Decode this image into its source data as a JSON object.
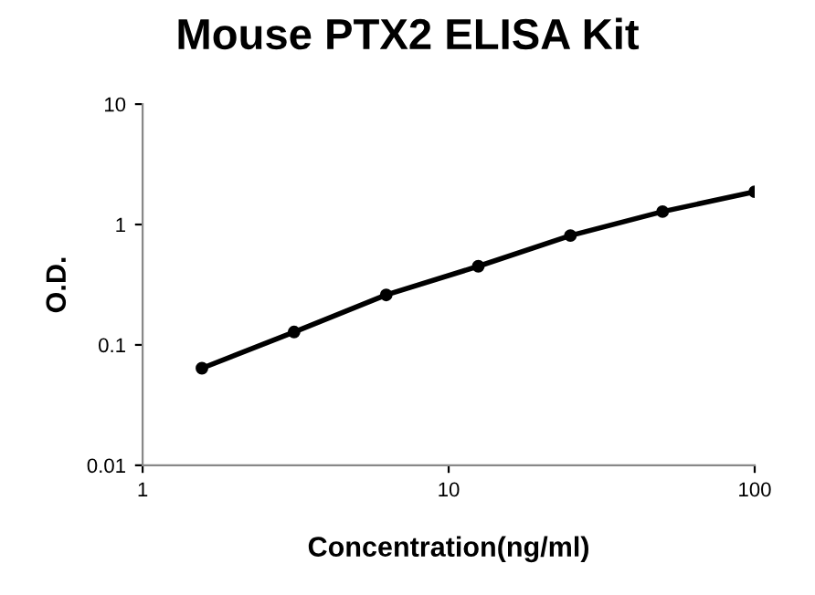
{
  "chart_data": {
    "type": "line",
    "title": "Mouse PTX2 ELISA Kit",
    "xlabel": "Concentration(ng/ml)",
    "ylabel": "O.D.",
    "x": [
      1.5625,
      3.125,
      6.25,
      12.5,
      25,
      50,
      100
    ],
    "series": [
      {
        "color": "#000000",
        "values": [
          0.064,
          0.128,
          0.26,
          0.45,
          0.81,
          1.28,
          1.87
        ]
      }
    ],
    "log": "xy",
    "xlim": [
      1,
      100
    ],
    "ylim": [
      0.01,
      10
    ],
    "xticks": [
      1,
      10,
      100
    ],
    "yticks": [
      0.01,
      0.1,
      1,
      10
    ],
    "marker": "circle",
    "line_style": "solid",
    "grid": false,
    "legend": false
  }
}
